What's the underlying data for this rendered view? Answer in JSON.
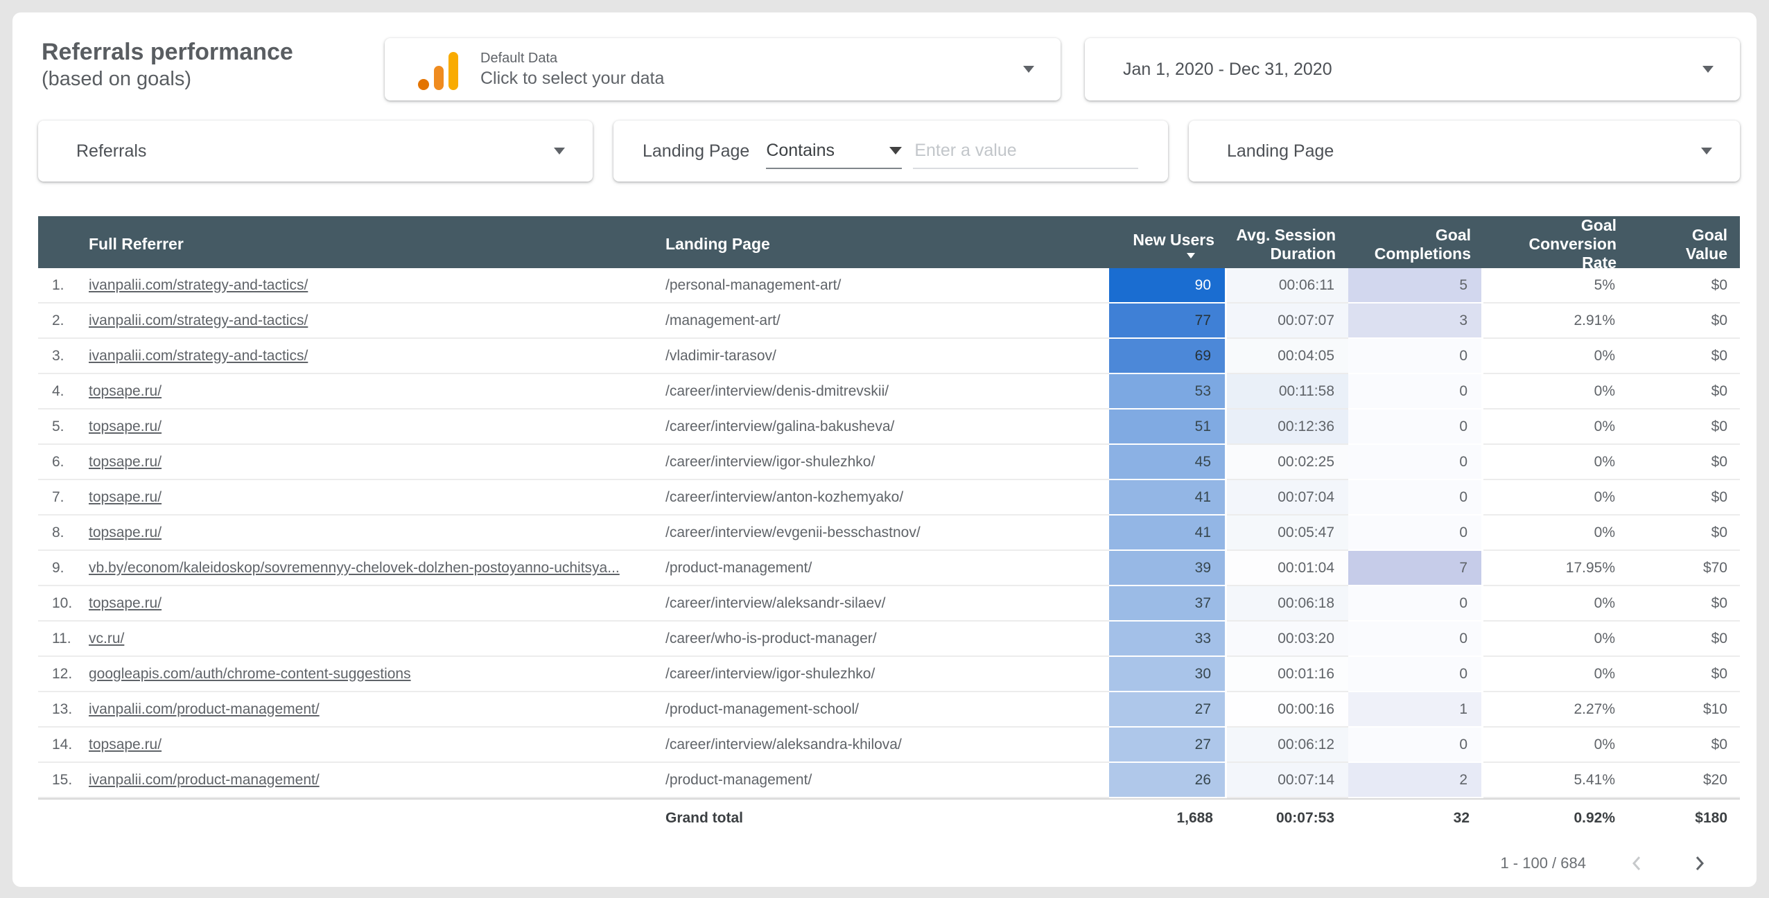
{
  "header": {
    "title": "Referrals performance",
    "subtitle": "(based on goals)"
  },
  "data_source": {
    "name": "Default Data",
    "prompt": "Click to select your data"
  },
  "date_range": {
    "value": "Jan 1, 2020 - Dec 31, 2020"
  },
  "filters": {
    "dimension_selector": "Referrals",
    "field_label": "Landing Page",
    "operator": "Contains",
    "value_placeholder": "Enter a value",
    "landing_page_selector": "Landing Page"
  },
  "table": {
    "columns": {
      "full_referrer": "Full Referrer",
      "landing_page": "Landing Page",
      "new_users": "New Users",
      "avg_session": "Avg. Session Duration",
      "goal_completions": "Goal Completions",
      "goal_conv_rate": "Goal Conversion Rate",
      "goal_value": "Goal Value"
    },
    "sorted_by": "New Users",
    "sort_direction": "desc",
    "rows": [
      {
        "num": "1.",
        "referrer": "ivanpalii.com/strategy-and-tactics/",
        "landing": "/personal-management-art/",
        "new_users": "90",
        "duration": "00:06:11",
        "completions": "5",
        "conv_rate": "5%",
        "goal_value": "$0",
        "nu_bg": "#1a6dd1",
        "nu_fg": "#ffffff",
        "gc_bg": "#d2d7ee",
        "dur_bg": "#f4f7fb"
      },
      {
        "num": "2.",
        "referrer": "ivanpalii.com/strategy-and-tactics/",
        "landing": "/management-art/",
        "new_users": "77",
        "duration": "00:07:07",
        "completions": "3",
        "conv_rate": "2.91%",
        "goal_value": "$0",
        "nu_bg": "#3f80d6",
        "nu_fg": "#263238",
        "gc_bg": "#dce0f1",
        "dur_bg": "#f3f6fb"
      },
      {
        "num": "3.",
        "referrer": "ivanpalii.com/strategy-and-tactics/",
        "landing": "/vladimir-tarasov/",
        "new_users": "69",
        "duration": "00:04:05",
        "completions": "0",
        "conv_rate": "0%",
        "goal_value": "$0",
        "nu_bg": "#4c88d8",
        "nu_fg": "#263238",
        "gc_bg": "#fafbfe",
        "dur_bg": "#f8fafc"
      },
      {
        "num": "4.",
        "referrer": "topsape.ru/",
        "landing": "/career/interview/denis-dmitrevskii/",
        "new_users": "53",
        "duration": "00:11:58",
        "completions": "0",
        "conv_rate": "0%",
        "goal_value": "$0",
        "nu_bg": "#7ca8e2",
        "nu_fg": "#37474f",
        "gc_bg": "#fafbfe",
        "dur_bg": "#eaf0f8"
      },
      {
        "num": "5.",
        "referrer": "topsape.ru/",
        "landing": "/career/interview/galina-bakusheva/",
        "new_users": "51",
        "duration": "00:12:36",
        "completions": "0",
        "conv_rate": "0%",
        "goal_value": "$0",
        "nu_bg": "#80aae2",
        "nu_fg": "#37474f",
        "gc_bg": "#fafbfe",
        "dur_bg": "#e9eff8"
      },
      {
        "num": "6.",
        "referrer": "topsape.ru/",
        "landing": "/career/interview/igor-shulezhko/",
        "new_users": "45",
        "duration": "00:02:25",
        "completions": "0",
        "conv_rate": "0%",
        "goal_value": "$0",
        "nu_bg": "#8bb1e4",
        "nu_fg": "#37474f",
        "gc_bg": "#fafbfe",
        "dur_bg": "#fafbfd"
      },
      {
        "num": "7.",
        "referrer": "topsape.ru/",
        "landing": "/career/interview/anton-kozhemyako/",
        "new_users": "41",
        "duration": "00:07:04",
        "completions": "0",
        "conv_rate": "0%",
        "goal_value": "$0",
        "nu_bg": "#93b6e5",
        "nu_fg": "#37474f",
        "gc_bg": "#fafbfe",
        "dur_bg": "#f3f6fb"
      },
      {
        "num": "8.",
        "referrer": "topsape.ru/",
        "landing": "/career/interview/evgenii-besschastnov/",
        "new_users": "41",
        "duration": "00:05:47",
        "completions": "0",
        "conv_rate": "0%",
        "goal_value": "$0",
        "nu_bg": "#93b6e5",
        "nu_fg": "#37474f",
        "gc_bg": "#fafbfe",
        "dur_bg": "#f5f8fb"
      },
      {
        "num": "9.",
        "referrer": "vb.by/econom/kaleidoskop/sovremennyy-chelovek-dolzhen-postoyanno-uchitsya...",
        "landing": "/product-management/",
        "new_users": "39",
        "duration": "00:01:04",
        "completions": "7",
        "conv_rate": "17.95%",
        "goal_value": "$70",
        "nu_bg": "#97b8e5",
        "nu_fg": "#37474f",
        "gc_bg": "#c6cce9",
        "dur_bg": "#fdfdfe"
      },
      {
        "num": "10.",
        "referrer": "topsape.ru/",
        "landing": "/career/interview/aleksandr-silaev/",
        "new_users": "37",
        "duration": "00:06:18",
        "completions": "0",
        "conv_rate": "0%",
        "goal_value": "$0",
        "nu_bg": "#9bbbe6",
        "nu_fg": "#37474f",
        "gc_bg": "#fafbfe",
        "dur_bg": "#f4f7fb"
      },
      {
        "num": "11.",
        "referrer": "vc.ru/",
        "landing": "/career/who-is-product-manager/",
        "new_users": "33",
        "duration": "00:03:20",
        "completions": "0",
        "conv_rate": "0%",
        "goal_value": "$0",
        "nu_bg": "#a3c0e8",
        "nu_fg": "#37474f",
        "gc_bg": "#fafbfe",
        "dur_bg": "#f9fafd"
      },
      {
        "num": "12.",
        "referrer": "googleapis.com/auth/chrome-content-suggestions",
        "landing": "/career/interview/igor-shulezhko/",
        "new_users": "30",
        "duration": "00:01:16",
        "completions": "0",
        "conv_rate": "0%",
        "goal_value": "$0",
        "nu_bg": "#a9c4e9",
        "nu_fg": "#37474f",
        "gc_bg": "#fafbfe",
        "dur_bg": "#fcfdfe"
      },
      {
        "num": "13.",
        "referrer": "ivanpalii.com/product-management/",
        "landing": "/product-management-school/",
        "new_users": "27",
        "duration": "00:00:16",
        "completions": "1",
        "conv_rate": "2.27%",
        "goal_value": "$10",
        "nu_bg": "#aec7ea",
        "nu_fg": "#37474f",
        "gc_bg": "#eff1f9",
        "dur_bg": "#fefeff"
      },
      {
        "num": "14.",
        "referrer": "topsape.ru/",
        "landing": "/career/interview/aleksandra-khilova/",
        "new_users": "27",
        "duration": "00:06:12",
        "completions": "0",
        "conv_rate": "0%",
        "goal_value": "$0",
        "nu_bg": "#aec7ea",
        "nu_fg": "#37474f",
        "gc_bg": "#fafbfe",
        "dur_bg": "#f4f7fb"
      },
      {
        "num": "15.",
        "referrer": "ivanpalii.com/product-management/",
        "landing": "/product-management/",
        "new_users": "26",
        "duration": "00:07:14",
        "completions": "2",
        "conv_rate": "5.41%",
        "goal_value": "$20",
        "nu_bg": "#b0c8ea",
        "nu_fg": "#37474f",
        "gc_bg": "#e7eaf6",
        "dur_bg": "#f3f6fb"
      }
    ],
    "grand_total": {
      "label": "Grand total",
      "new_users": "1,688",
      "duration": "00:07:53",
      "completions": "32",
      "conv_rate": "0.92%",
      "goal_value": "$180"
    },
    "pagination": {
      "range": "1 - 100 / 684"
    }
  },
  "colors": {
    "table_header_bg": "#455a64",
    "heatmap_blue_max": "#1a6dd1",
    "heatmap_purple_max": "#c6cce9",
    "ga_icon_dark_orange": "#e37400",
    "ga_icon_light_orange": "#f9ab00",
    "cell_text": "#5f6368"
  }
}
